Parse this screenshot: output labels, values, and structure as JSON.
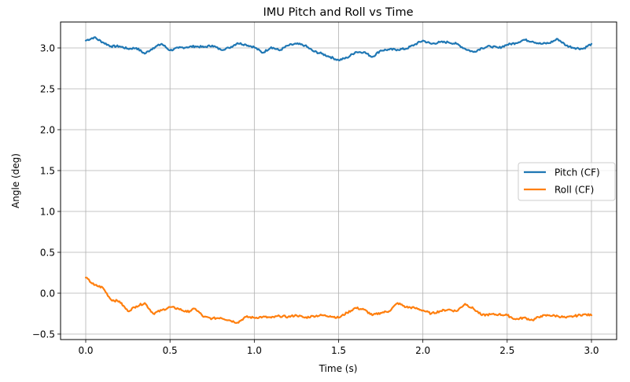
{
  "chart_data": {
    "type": "line",
    "title": "IMU Pitch and Roll vs Time",
    "xlabel": "Time (s)",
    "ylabel": "Angle (deg)",
    "xlim": [
      -0.15,
      3.15
    ],
    "ylim": [
      -0.57,
      3.3
    ],
    "xticks": [
      0.0,
      0.5,
      1.0,
      1.5,
      2.0,
      2.5,
      3.0
    ],
    "xtick_labels": [
      "0.0",
      "0.5",
      "1.0",
      "1.5",
      "2.0",
      "2.5",
      "3.0"
    ],
    "yticks": [
      -0.5,
      0.0,
      0.5,
      1.0,
      1.5,
      2.0,
      2.5,
      3.0
    ],
    "ytick_labels": [
      "−0.5",
      "0.0",
      "0.5",
      "1.0",
      "1.5",
      "2.0",
      "2.5",
      "3.0"
    ],
    "grid": true,
    "legend_position": "center right",
    "x": [
      0.0,
      0.05,
      0.1,
      0.15,
      0.2,
      0.25,
      0.3,
      0.35,
      0.4,
      0.45,
      0.5,
      0.55,
      0.6,
      0.65,
      0.7,
      0.75,
      0.8,
      0.85,
      0.9,
      0.95,
      1.0,
      1.05,
      1.1,
      1.15,
      1.2,
      1.25,
      1.3,
      1.35,
      1.4,
      1.45,
      1.5,
      1.55,
      1.6,
      1.65,
      1.7,
      1.75,
      1.8,
      1.85,
      1.9,
      1.95,
      2.0,
      2.05,
      2.1,
      2.15,
      2.2,
      2.25,
      2.3,
      2.35,
      2.4,
      2.45,
      2.5,
      2.55,
      2.6,
      2.65,
      2.7,
      2.75,
      2.8,
      2.85,
      2.9,
      2.95,
      3.0
    ],
    "series": [
      {
        "name": "Pitch (CF)",
        "color": "#1f77b4",
        "values": [
          3.09,
          3.13,
          3.07,
          3.02,
          3.02,
          2.99,
          3.0,
          2.93,
          3.0,
          3.05,
          2.97,
          3.0,
          3.01,
          3.02,
          3.01,
          3.03,
          2.98,
          3.0,
          3.06,
          3.04,
          3.01,
          2.94,
          3.01,
          2.97,
          3.03,
          3.05,
          3.03,
          2.96,
          2.93,
          2.89,
          2.85,
          2.88,
          2.95,
          2.95,
          2.89,
          2.97,
          2.98,
          2.98,
          2.99,
          3.04,
          3.09,
          3.05,
          3.07,
          3.07,
          3.05,
          2.99,
          2.95,
          3.0,
          3.02,
          3.0,
          3.04,
          3.06,
          3.1,
          3.08,
          3.05,
          3.06,
          3.11,
          3.03,
          3.0,
          2.99,
          3.05
        ]
      },
      {
        "name": "Roll (CF)",
        "color": "#ff7f0e",
        "values": [
          0.19,
          0.1,
          0.07,
          -0.08,
          -0.1,
          -0.22,
          -0.16,
          -0.12,
          -0.25,
          -0.21,
          -0.17,
          -0.19,
          -0.23,
          -0.19,
          -0.29,
          -0.31,
          -0.3,
          -0.33,
          -0.36,
          -0.29,
          -0.3,
          -0.29,
          -0.3,
          -0.28,
          -0.29,
          -0.27,
          -0.3,
          -0.28,
          -0.27,
          -0.28,
          -0.3,
          -0.24,
          -0.18,
          -0.2,
          -0.27,
          -0.24,
          -0.22,
          -0.12,
          -0.17,
          -0.18,
          -0.21,
          -0.25,
          -0.22,
          -0.2,
          -0.22,
          -0.13,
          -0.19,
          -0.27,
          -0.26,
          -0.26,
          -0.27,
          -0.32,
          -0.3,
          -0.33,
          -0.28,
          -0.27,
          -0.28,
          -0.3,
          -0.28,
          -0.26,
          -0.27
        ]
      }
    ]
  },
  "labels": {
    "title": "IMU Pitch and Roll vs Time",
    "xlabel": "Time (s)",
    "ylabel": "Angle (deg)",
    "legend": [
      "Pitch (CF)",
      "Roll (CF)"
    ]
  }
}
